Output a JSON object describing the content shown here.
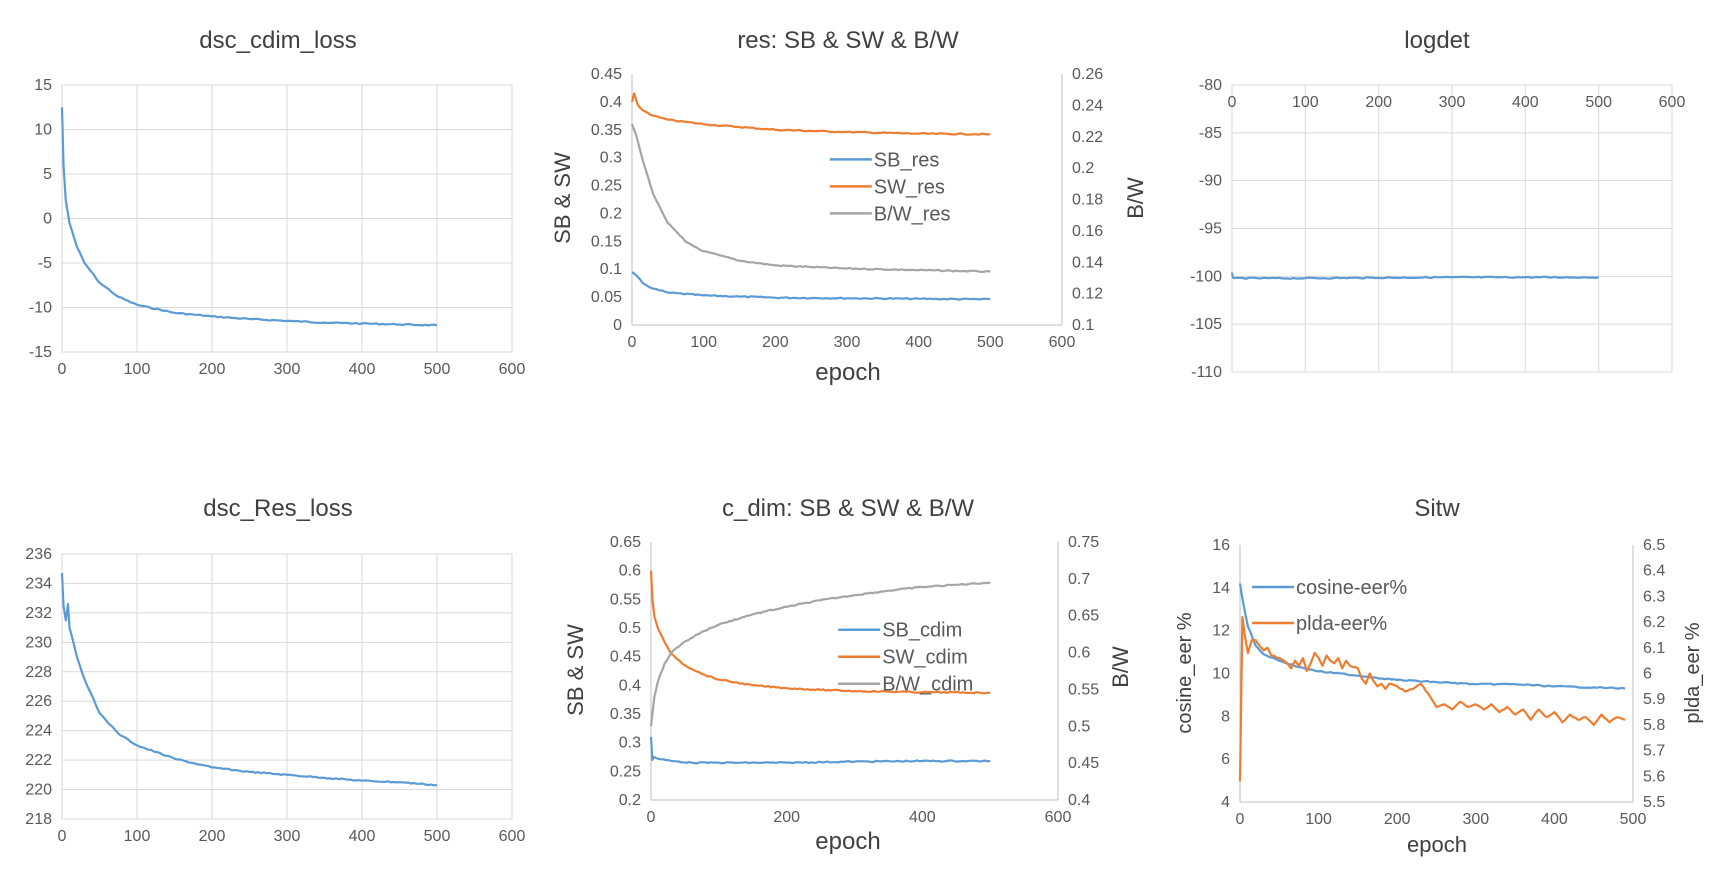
{
  "colors": {
    "blue": "#5B9BD5",
    "orange": "#ED7D31",
    "gray": "#A5A5A5",
    "grid": "#D9D9D9",
    "axis": "#BFBFBF",
    "text": "#595959",
    "title": "#404040"
  },
  "chart_data": [
    {
      "id": "dsc_cdim_loss",
      "type": "line",
      "title": "dsc_cdim_loss",
      "xlabel": "",
      "ylabel": "",
      "xlim": [
        0,
        600
      ],
      "ylim": [
        -15,
        15
      ],
      "x_ticks": [
        0,
        100,
        200,
        300,
        400,
        500,
        600
      ],
      "y_ticks": [
        -15,
        -10,
        -5,
        0,
        5,
        10,
        15
      ],
      "grid": true,
      "series": [
        {
          "name": "dsc_cdim_loss",
          "color": "blue",
          "x": [
            0,
            2,
            5,
            10,
            20,
            30,
            50,
            75,
            100,
            150,
            200,
            250,
            300,
            350,
            400,
            450,
            500
          ],
          "values": [
            12.5,
            6,
            2,
            -0.5,
            -3.2,
            -5,
            -7.2,
            -8.8,
            -9.7,
            -10.6,
            -11,
            -11.3,
            -11.5,
            -11.7,
            -11.8,
            -11.9,
            -12
          ]
        }
      ]
    },
    {
      "id": "res",
      "type": "line",
      "title": "res: SB & SW & B/W",
      "xlabel": "epoch",
      "ylabel": "SB & SW",
      "y2label": "B/W",
      "xlim": [
        0,
        600
      ],
      "ylim": [
        0,
        0.45
      ],
      "y2lim": [
        0.1,
        0.26
      ],
      "x_ticks": [
        0,
        100,
        200,
        300,
        400,
        500,
        600
      ],
      "y_ticks": [
        0,
        0.05,
        0.1,
        0.15,
        0.2,
        0.25,
        0.3,
        0.35,
        0.4,
        0.45
      ],
      "y_tick_labels": [
        "0",
        "0.05",
        "0.1",
        "0.15",
        "0.2",
        "0.25",
        "0.3",
        "0.35",
        "0.4",
        "0.45"
      ],
      "y2_ticks": [
        0.1,
        0.12,
        0.14,
        0.16,
        0.18,
        0.2,
        0.22,
        0.24,
        0.26
      ],
      "y2_tick_labels": [
        "0.1",
        "0.12",
        "0.14",
        "0.16",
        "0.18",
        "0.2",
        "0.22",
        "0.24",
        "0.26"
      ],
      "grid": false,
      "legend": "center-right",
      "series": [
        {
          "name": "SB_res",
          "color": "blue",
          "axis": "left",
          "x": [
            0,
            5,
            15,
            30,
            50,
            100,
            150,
            200,
            300,
            400,
            500
          ],
          "values": [
            0.095,
            0.09,
            0.075,
            0.065,
            0.058,
            0.053,
            0.051,
            0.049,
            0.048,
            0.047,
            0.046
          ]
        },
        {
          "name": "SW_res",
          "color": "orange",
          "axis": "left",
          "x": [
            0,
            3,
            8,
            15,
            30,
            50,
            100,
            150,
            200,
            300,
            400,
            500
          ],
          "values": [
            0.4,
            0.415,
            0.395,
            0.385,
            0.375,
            0.368,
            0.36,
            0.355,
            0.35,
            0.346,
            0.343,
            0.342
          ]
        },
        {
          "name": "B/W_res",
          "color": "gray",
          "axis": "right",
          "x": [
            0,
            5,
            15,
            30,
            50,
            75,
            100,
            150,
            200,
            250,
            300,
            400,
            500
          ],
          "values": [
            0.228,
            0.222,
            0.205,
            0.183,
            0.165,
            0.153,
            0.147,
            0.141,
            0.138,
            0.137,
            0.136,
            0.135,
            0.134
          ]
        }
      ]
    },
    {
      "id": "logdet",
      "type": "line",
      "title": "logdet",
      "xlabel": "",
      "ylabel": "",
      "xlim": [
        0,
        600
      ],
      "ylim": [
        -110,
        -80
      ],
      "x_ticks": [
        0,
        100,
        200,
        300,
        400,
        500,
        600
      ],
      "y_ticks": [
        -110,
        -105,
        -100,
        -95,
        -90,
        -85,
        -80
      ],
      "x_axis_at_top": true,
      "grid": true,
      "series": [
        {
          "name": "logdet",
          "color": "blue",
          "x": [
            0,
            1,
            3,
            100,
            200,
            300,
            400,
            500
          ],
          "values": [
            -99.6,
            -100.1,
            -100.2,
            -100.2,
            -100.15,
            -100.1,
            -100.1,
            -100.1
          ]
        }
      ]
    },
    {
      "id": "dsc_Res_loss",
      "type": "line",
      "title": "dsc_Res_loss",
      "xlabel": "",
      "ylabel": "",
      "xlim": [
        0,
        600
      ],
      "ylim": [
        218,
        236
      ],
      "x_ticks": [
        0,
        100,
        200,
        300,
        400,
        500,
        600
      ],
      "y_ticks": [
        218,
        220,
        222,
        224,
        226,
        228,
        230,
        232,
        234,
        236
      ],
      "grid": true,
      "series": [
        {
          "name": "dsc_Res_loss",
          "color": "blue",
          "x": [
            0,
            2,
            5,
            8,
            10,
            20,
            30,
            50,
            75,
            100,
            150,
            200,
            250,
            300,
            350,
            400,
            450,
            500
          ],
          "values": [
            234.7,
            232.5,
            231.5,
            232.6,
            231,
            229,
            227.5,
            225.2,
            223.8,
            223,
            222.1,
            221.5,
            221.2,
            221,
            220.8,
            220.6,
            220.5,
            220.3
          ]
        }
      ]
    },
    {
      "id": "c_dim",
      "type": "line",
      "title": "c_dim: SB & SW & B/W",
      "xlabel": "epoch",
      "ylabel": "SB & SW",
      "y2label": "B/W",
      "xlim": [
        0,
        600
      ],
      "ylim": [
        0.2,
        0.65
      ],
      "y2lim": [
        0.4,
        0.75
      ],
      "x_ticks": [
        0,
        200,
        400,
        600
      ],
      "y_ticks": [
        0.2,
        0.25,
        0.3,
        0.35,
        0.4,
        0.45,
        0.5,
        0.55,
        0.6,
        0.65
      ],
      "y_tick_labels": [
        "0.2",
        "0.25",
        "0.3",
        "0.35",
        "0.4",
        "0.45",
        "0.5",
        "0.55",
        "0.6",
        "0.65"
      ],
      "y2_ticks": [
        0.4,
        0.45,
        0.5,
        0.55,
        0.6,
        0.65,
        0.7,
        0.75
      ],
      "y2_tick_labels": [
        "0.4",
        "0.45",
        "0.5",
        "0.55",
        "0.6",
        "0.65",
        "0.7",
        "0.75"
      ],
      "grid": false,
      "legend": "center-right",
      "series": [
        {
          "name": "SB_cdim",
          "color": "blue",
          "axis": "left",
          "x": [
            0,
            2,
            4,
            10,
            30,
            60,
            100,
            200,
            300,
            400,
            500
          ],
          "values": [
            0.31,
            0.27,
            0.275,
            0.272,
            0.268,
            0.265,
            0.265,
            0.265,
            0.267,
            0.268,
            0.268
          ]
        },
        {
          "name": "SW_cdim",
          "color": "orange",
          "axis": "left",
          "x": [
            0,
            2,
            5,
            10,
            20,
            30,
            50,
            75,
            100,
            150,
            200,
            250,
            300,
            400,
            500
          ],
          "values": [
            0.6,
            0.55,
            0.52,
            0.5,
            0.475,
            0.455,
            0.435,
            0.42,
            0.41,
            0.4,
            0.395,
            0.392,
            0.39,
            0.388,
            0.387
          ]
        },
        {
          "name": "B/W_cdim",
          "color": "gray",
          "axis": "right",
          "x": [
            0,
            5,
            10,
            20,
            30,
            50,
            75,
            100,
            150,
            200,
            250,
            300,
            350,
            400,
            450,
            500
          ],
          "values": [
            0.5,
            0.54,
            0.56,
            0.585,
            0.6,
            0.615,
            0.628,
            0.638,
            0.652,
            0.662,
            0.671,
            0.678,
            0.684,
            0.689,
            0.692,
            0.695
          ]
        }
      ]
    },
    {
      "id": "sitw",
      "type": "line",
      "title": "Sitw",
      "xlabel": "epoch",
      "ylabel": "cosine_eer %",
      "y2label": "plda_eer %",
      "xlim": [
        0,
        500
      ],
      "ylim": [
        4,
        16
      ],
      "y2lim": [
        5.5,
        6.5
      ],
      "x_ticks": [
        0,
        100,
        200,
        300,
        400,
        500
      ],
      "y_ticks": [
        4,
        6,
        8,
        10,
        12,
        14,
        16
      ],
      "y2_ticks": [
        5.5,
        5.6,
        5.7,
        5.8,
        5.9,
        6.0,
        6.1,
        6.2,
        6.3,
        6.4,
        6.5
      ],
      "y2_tick_labels": [
        "5.5",
        "5.6",
        "5.7",
        "5.8",
        "5.9",
        "6",
        "6.1",
        "6.2",
        "6.3",
        "6.4",
        "6.5"
      ],
      "grid": false,
      "legend": "top-center",
      "series": [
        {
          "name": "cosine-eer%",
          "color": "blue",
          "axis": "left",
          "x": [
            0,
            3,
            10,
            20,
            30,
            50,
            75,
            100,
            150,
            200,
            250,
            300,
            350,
            400,
            450,
            490
          ],
          "values": [
            14.2,
            13.5,
            12.2,
            11.3,
            10.9,
            10.6,
            10.3,
            10.1,
            9.9,
            9.7,
            9.6,
            9.5,
            9.5,
            9.4,
            9.35,
            9.3
          ]
        },
        {
          "name": "plda-eer%",
          "color": "orange",
          "axis": "right",
          "x": [
            0,
            3,
            6,
            10,
            15,
            20,
            30,
            35,
            40,
            50,
            60,
            65,
            70,
            75,
            80,
            85,
            90,
            95,
            100,
            105,
            110,
            115,
            120,
            125,
            130,
            135,
            140,
            150,
            155,
            160,
            165,
            170,
            175,
            180,
            185,
            190,
            200,
            210,
            220,
            230,
            240,
            250,
            260,
            270,
            280,
            290,
            300,
            310,
            320,
            330,
            340,
            350,
            360,
            370,
            380,
            390,
            400,
            410,
            420,
            430,
            440,
            450,
            460,
            470,
            480,
            490
          ],
          "values": [
            5.58,
            6.22,
            6.15,
            6.08,
            6.13,
            6.13,
            6.09,
            6.1,
            6.07,
            6.06,
            6.04,
            6.02,
            6.05,
            6.03,
            6.06,
            6.01,
            6.04,
            6.08,
            6.06,
            6.03,
            6.07,
            6.05,
            6.04,
            6.06,
            6.02,
            6.05,
            6.03,
            6.02,
            5.98,
            5.96,
            6.0,
            5.97,
            5.95,
            5.96,
            5.94,
            5.96,
            5.95,
            5.93,
            5.94,
            5.96,
            5.92,
            5.87,
            5.88,
            5.86,
            5.89,
            5.87,
            5.88,
            5.86,
            5.88,
            5.85,
            5.87,
            5.84,
            5.86,
            5.82,
            5.86,
            5.83,
            5.85,
            5.81,
            5.84,
            5.82,
            5.83,
            5.8,
            5.84,
            5.81,
            5.83,
            5.82
          ]
        }
      ]
    }
  ]
}
